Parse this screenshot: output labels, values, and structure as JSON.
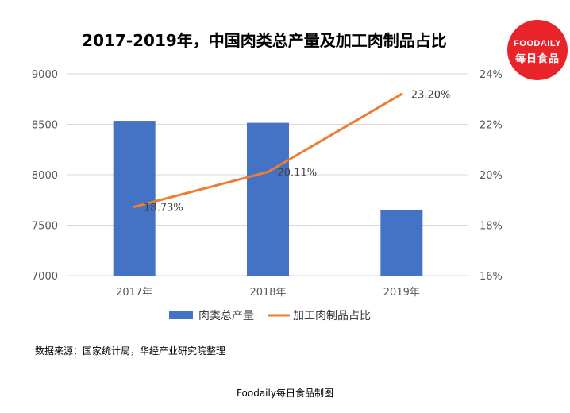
{
  "brand": {
    "logo_line1": "FOODAILY",
    "logo_line2": "每日食品",
    "logo_color": "#e8232a"
  },
  "source_text": "数据来源：国家统计局，华经产业研究院整理",
  "footer_text": "Foodaily每日食品制图",
  "chart_data": {
    "type": "bar",
    "title": "2017-2019年，中国肉类总产量及加工肉制品占比",
    "categories": [
      "2017年",
      "2018年",
      "2019年"
    ],
    "series": [
      {
        "name": "肉类总产量",
        "type": "bar",
        "axis": "left",
        "color": "#4472c4",
        "values": [
          8535,
          8515,
          7650
        ]
      },
      {
        "name": "加工肉制品占比",
        "type": "line",
        "axis": "right",
        "color": "#ed7d31",
        "values": [
          18.73,
          20.11,
          23.2
        ],
        "labels": [
          "18.73%",
          "20.11%",
          "23.20%"
        ]
      }
    ],
    "y_left": {
      "min": 7000,
      "max": 9000,
      "ticks": [
        "7000",
        "7500",
        "8000",
        "8500",
        "9000"
      ]
    },
    "y_right": {
      "min": 16,
      "max": 24,
      "ticks": [
        "16%",
        "18%",
        "20%",
        "22%",
        "24%"
      ]
    },
    "grid": true,
    "legend_position": "bottom"
  }
}
